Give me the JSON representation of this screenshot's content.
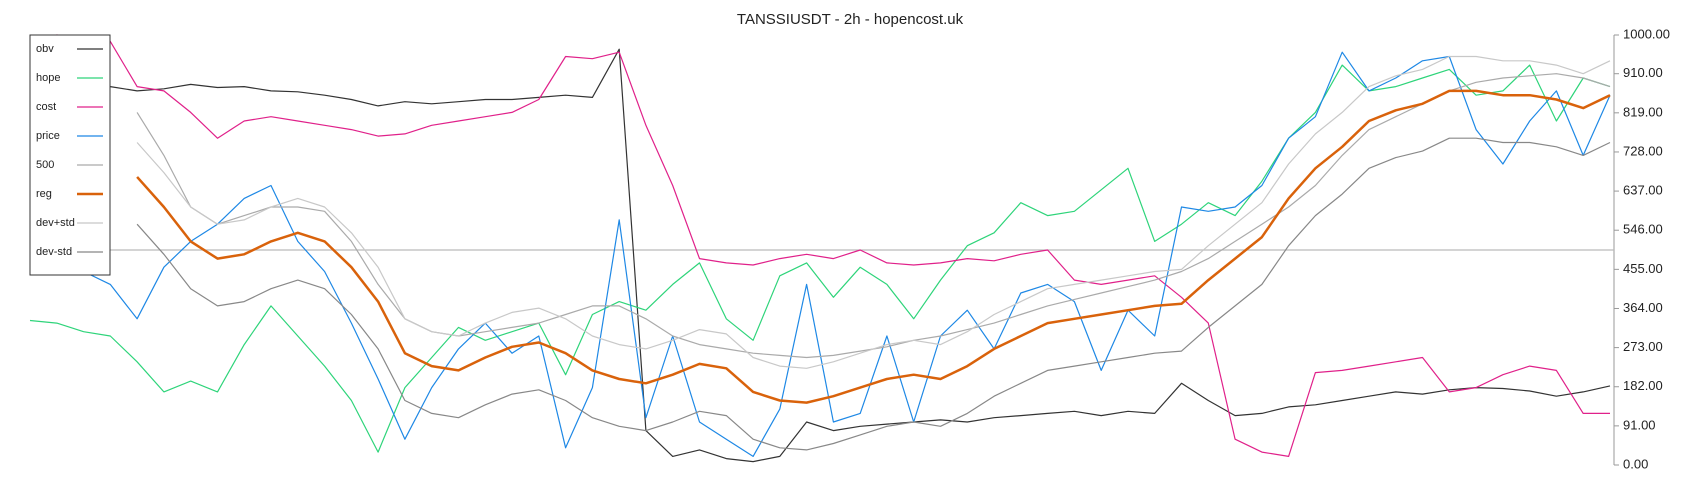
{
  "chart_data": {
    "type": "line",
    "title": "TANSSIUSDT - 2h - hopencost.uk",
    "ylim": [
      0,
      1000
    ],
    "yticks": [
      {
        "value": 0,
        "label": "0.00"
      },
      {
        "value": 91,
        "label": "91.00"
      },
      {
        "value": 182,
        "label": "182.00"
      },
      {
        "value": 273,
        "label": "273.00"
      },
      {
        "value": 364,
        "label": "364.00"
      },
      {
        "value": 455,
        "label": "455.00"
      },
      {
        "value": 546,
        "label": "546.00"
      },
      {
        "value": 637,
        "label": "637.00"
      },
      {
        "value": 728,
        "label": "728.00"
      },
      {
        "value": 819,
        "label": "819.00"
      },
      {
        "value": 910,
        "label": "910.00"
      },
      {
        "value": 1000,
        "label": "1000.00"
      }
    ],
    "y_axis_side": "right",
    "grid": false,
    "reference_line": 500,
    "legend": "top-left",
    "series": [
      {
        "name": "obv",
        "color": "#333333",
        "width": 1.2,
        "values": [
          917,
          905,
          895,
          880,
          870,
          875,
          885,
          878,
          880,
          870,
          868,
          860,
          850,
          835,
          845,
          840,
          845,
          850,
          850,
          855,
          860,
          855,
          967,
          80,
          20,
          35,
          15,
          8,
          20,
          100,
          80,
          90,
          95,
          100,
          105,
          100,
          110,
          115,
          120,
          125,
          115,
          125,
          120,
          190,
          150,
          115,
          120,
          135,
          140,
          150,
          160,
          170,
          165,
          175,
          180,
          178,
          172,
          160,
          170,
          184
        ]
      },
      {
        "name": "hope",
        "color": "#2ed47a",
        "width": 1.2,
        "values": [
          336,
          330,
          310,
          300,
          240,
          170,
          195,
          170,
          280,
          370,
          300,
          230,
          150,
          30,
          180,
          250,
          320,
          290,
          310,
          330,
          210,
          350,
          380,
          360,
          420,
          470,
          340,
          290,
          440,
          470,
          390,
          460,
          420,
          340,
          430,
          510,
          540,
          610,
          580,
          590,
          640,
          690,
          520,
          560,
          610,
          580,
          660,
          760,
          820,
          930,
          870,
          880,
          900,
          920,
          860,
          870,
          930,
          800,
          900,
          880
        ]
      },
      {
        "name": "cost",
        "color": "#e0218a",
        "width": 1.2,
        "values": [
          990,
          1000,
          995,
          985,
          880,
          870,
          820,
          760,
          800,
          810,
          800,
          790,
          780,
          765,
          770,
          790,
          800,
          810,
          820,
          850,
          950,
          945,
          960,
          790,
          650,
          480,
          470,
          465,
          480,
          490,
          480,
          500,
          470,
          465,
          470,
          480,
          475,
          490,
          500,
          430,
          420,
          430,
          440,
          390,
          330,
          60,
          30,
          20,
          215,
          220,
          230,
          240,
          250,
          170,
          180,
          210,
          230,
          220,
          120,
          120
        ]
      },
      {
        "name": "price",
        "color": "#1e88e5",
        "width": 1.2,
        "values": [
          510,
          500,
          450,
          420,
          340,
          460,
          520,
          560,
          620,
          650,
          520,
          450,
          330,
          200,
          60,
          180,
          270,
          330,
          260,
          300,
          40,
          180,
          570,
          110,
          300,
          100,
          60,
          20,
          130,
          420,
          100,
          120,
          300,
          100,
          300,
          360,
          270,
          400,
          420,
          380,
          220,
          360,
          300,
          600,
          590,
          600,
          650,
          760,
          810,
          960,
          870,
          900,
          940,
          950,
          780,
          700,
          800,
          870,
          720,
          860
        ]
      },
      {
        "name": "500",
        "color": "#aaaaaa",
        "width": 1.2,
        "values": [
          null,
          null,
          null,
          null,
          820,
          720,
          600,
          560,
          580,
          600,
          600,
          590,
          520,
          420,
          340,
          310,
          300,
          310,
          320,
          330,
          350,
          370,
          370,
          340,
          300,
          280,
          270,
          260,
          255,
          250,
          255,
          265,
          275,
          290,
          300,
          315,
          330,
          350,
          370,
          385,
          400,
          415,
          430,
          450,
          480,
          520,
          560,
          600,
          650,
          720,
          780,
          810,
          840,
          870,
          890,
          900,
          905,
          910,
          900,
          880
        ]
      },
      {
        "name": "reg",
        "color": "#d9620b",
        "width": 2.5,
        "values": [
          null,
          null,
          null,
          null,
          670,
          600,
          520,
          480,
          490,
          520,
          540,
          520,
          460,
          380,
          260,
          230,
          220,
          250,
          275,
          285,
          260,
          220,
          200,
          190,
          210,
          235,
          225,
          170,
          150,
          145,
          160,
          180,
          200,
          210,
          200,
          230,
          270,
          300,
          330,
          340,
          350,
          360,
          370,
          375,
          430,
          480,
          530,
          620,
          690,
          740,
          800,
          825,
          840,
          870,
          870,
          860,
          860,
          850,
          830,
          860
        ]
      },
      {
        "name": "dev+std",
        "color": "#c8c8c8",
        "width": 1.2,
        "values": [
          null,
          null,
          null,
          null,
          750,
          680,
          600,
          560,
          570,
          600,
          620,
          600,
          540,
          460,
          340,
          310,
          300,
          330,
          355,
          365,
          340,
          300,
          280,
          270,
          290,
          315,
          305,
          250,
          230,
          225,
          240,
          260,
          280,
          290,
          280,
          310,
          350,
          380,
          410,
          420,
          430,
          440,
          450,
          455,
          510,
          560,
          610,
          700,
          770,
          820,
          880,
          905,
          920,
          950,
          950,
          940,
          940,
          930,
          910,
          940
        ]
      },
      {
        "name": "dev-std",
        "color": "#888888",
        "width": 1.2,
        "values": [
          null,
          null,
          null,
          null,
          560,
          490,
          410,
          370,
          380,
          410,
          430,
          410,
          350,
          270,
          150,
          120,
          110,
          140,
          165,
          175,
          150,
          110,
          90,
          80,
          100,
          125,
          115,
          60,
          40,
          35,
          50,
          70,
          90,
          100,
          90,
          120,
          160,
          190,
          220,
          230,
          240,
          250,
          260,
          265,
          320,
          370,
          420,
          510,
          580,
          630,
          690,
          715,
          730,
          760,
          760,
          750,
          750,
          740,
          720,
          750
        ]
      }
    ]
  }
}
